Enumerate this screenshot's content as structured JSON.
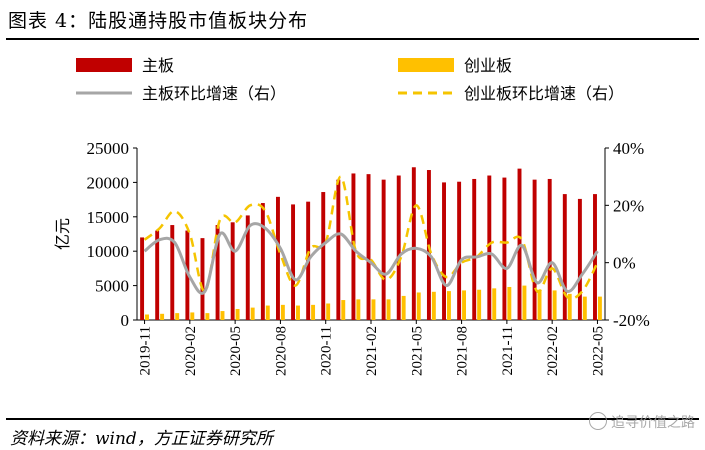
{
  "title": "图表 4：陆股通持股市值板块分布",
  "source": "资料来源：wind，方正证券研究所",
  "watermark": "追寻价值之路",
  "colors": {
    "main": "#c00000",
    "chinext": "#ffc000",
    "main_line": "#a6a6a6",
    "chinext_line": "#f5c400"
  },
  "chart_data": {
    "type": "bar",
    "ylabel": "亿元",
    "ylim": [
      0,
      25000
    ],
    "y_ticks": [
      0,
      5000,
      10000,
      15000,
      20000,
      25000
    ],
    "y2lim": [
      -20,
      40
    ],
    "y2_ticks": [
      -20,
      0,
      20,
      40
    ],
    "y2_tick_labels": [
      "-20%",
      "0%",
      "20%",
      "40%"
    ],
    "x_tick_labels": [
      "2019-11",
      "2020-02",
      "2020-05",
      "2020-08",
      "2020-11",
      "2021-02",
      "2021-05",
      "2021-08",
      "2021-11",
      "2022-02",
      "2022-05"
    ],
    "x": [
      "2019-11",
      "2019-12",
      "2020-01",
      "2020-02",
      "2020-03",
      "2020-04",
      "2020-05",
      "2020-06",
      "2020-07",
      "2020-08",
      "2020-09",
      "2020-10",
      "2020-11",
      "2020-12",
      "2021-01",
      "2021-02",
      "2021-03",
      "2021-04",
      "2021-05",
      "2021-06",
      "2021-07",
      "2021-08",
      "2021-09",
      "2021-10",
      "2021-11",
      "2021-12",
      "2022-01",
      "2022-02",
      "2022-03",
      "2022-04",
      "2022-05"
    ],
    "series": [
      {
        "name": "主板",
        "axis": "left",
        "kind": "bar",
        "values": [
          12000,
          13000,
          13800,
          13000,
          11900,
          13800,
          14200,
          15200,
          17000,
          17900,
          16800,
          17200,
          18600,
          20400,
          21300,
          21200,
          20400,
          21000,
          22200,
          21800,
          20000,
          20100,
          20500,
          21000,
          20700,
          22000,
          20400,
          20500,
          18300,
          17600,
          18300
        ]
      },
      {
        "name": "创业板",
        "axis": "left",
        "kind": "bar",
        "values": [
          800,
          900,
          1000,
          1100,
          1000,
          1300,
          1600,
          1800,
          2100,
          2200,
          2100,
          2200,
          2400,
          2900,
          3000,
          3000,
          3000,
          3500,
          4000,
          4100,
          4200,
          4300,
          4400,
          4600,
          4800,
          5000,
          4400,
          4300,
          3800,
          3400,
          3400
        ]
      },
      {
        "name": "主板环比增速（右）",
        "axis": "right",
        "kind": "line",
        "values": [
          4,
          8,
          7,
          -5,
          -10,
          10,
          4,
          13,
          12,
          5,
          -6,
          2,
          7,
          10,
          4,
          0,
          -4,
          3,
          5,
          2,
          -8,
          1,
          2,
          3,
          -2,
          6,
          -7,
          0,
          -10,
          -4,
          4
        ]
      },
      {
        "name": "创业板环比增速（右）",
        "axis": "right",
        "kind": "dashed-line",
        "values": [
          8,
          12,
          18,
          10,
          -10,
          15,
          14,
          20,
          18,
          3,
          -8,
          5,
          7,
          30,
          4,
          1,
          -6,
          2,
          20,
          3,
          -5,
          0,
          2,
          7,
          7,
          8,
          -10,
          -2,
          -12,
          -10,
          0
        ]
      }
    ],
    "legend": {
      "placement": "top",
      "columns": 2
    },
    "grid": false
  }
}
